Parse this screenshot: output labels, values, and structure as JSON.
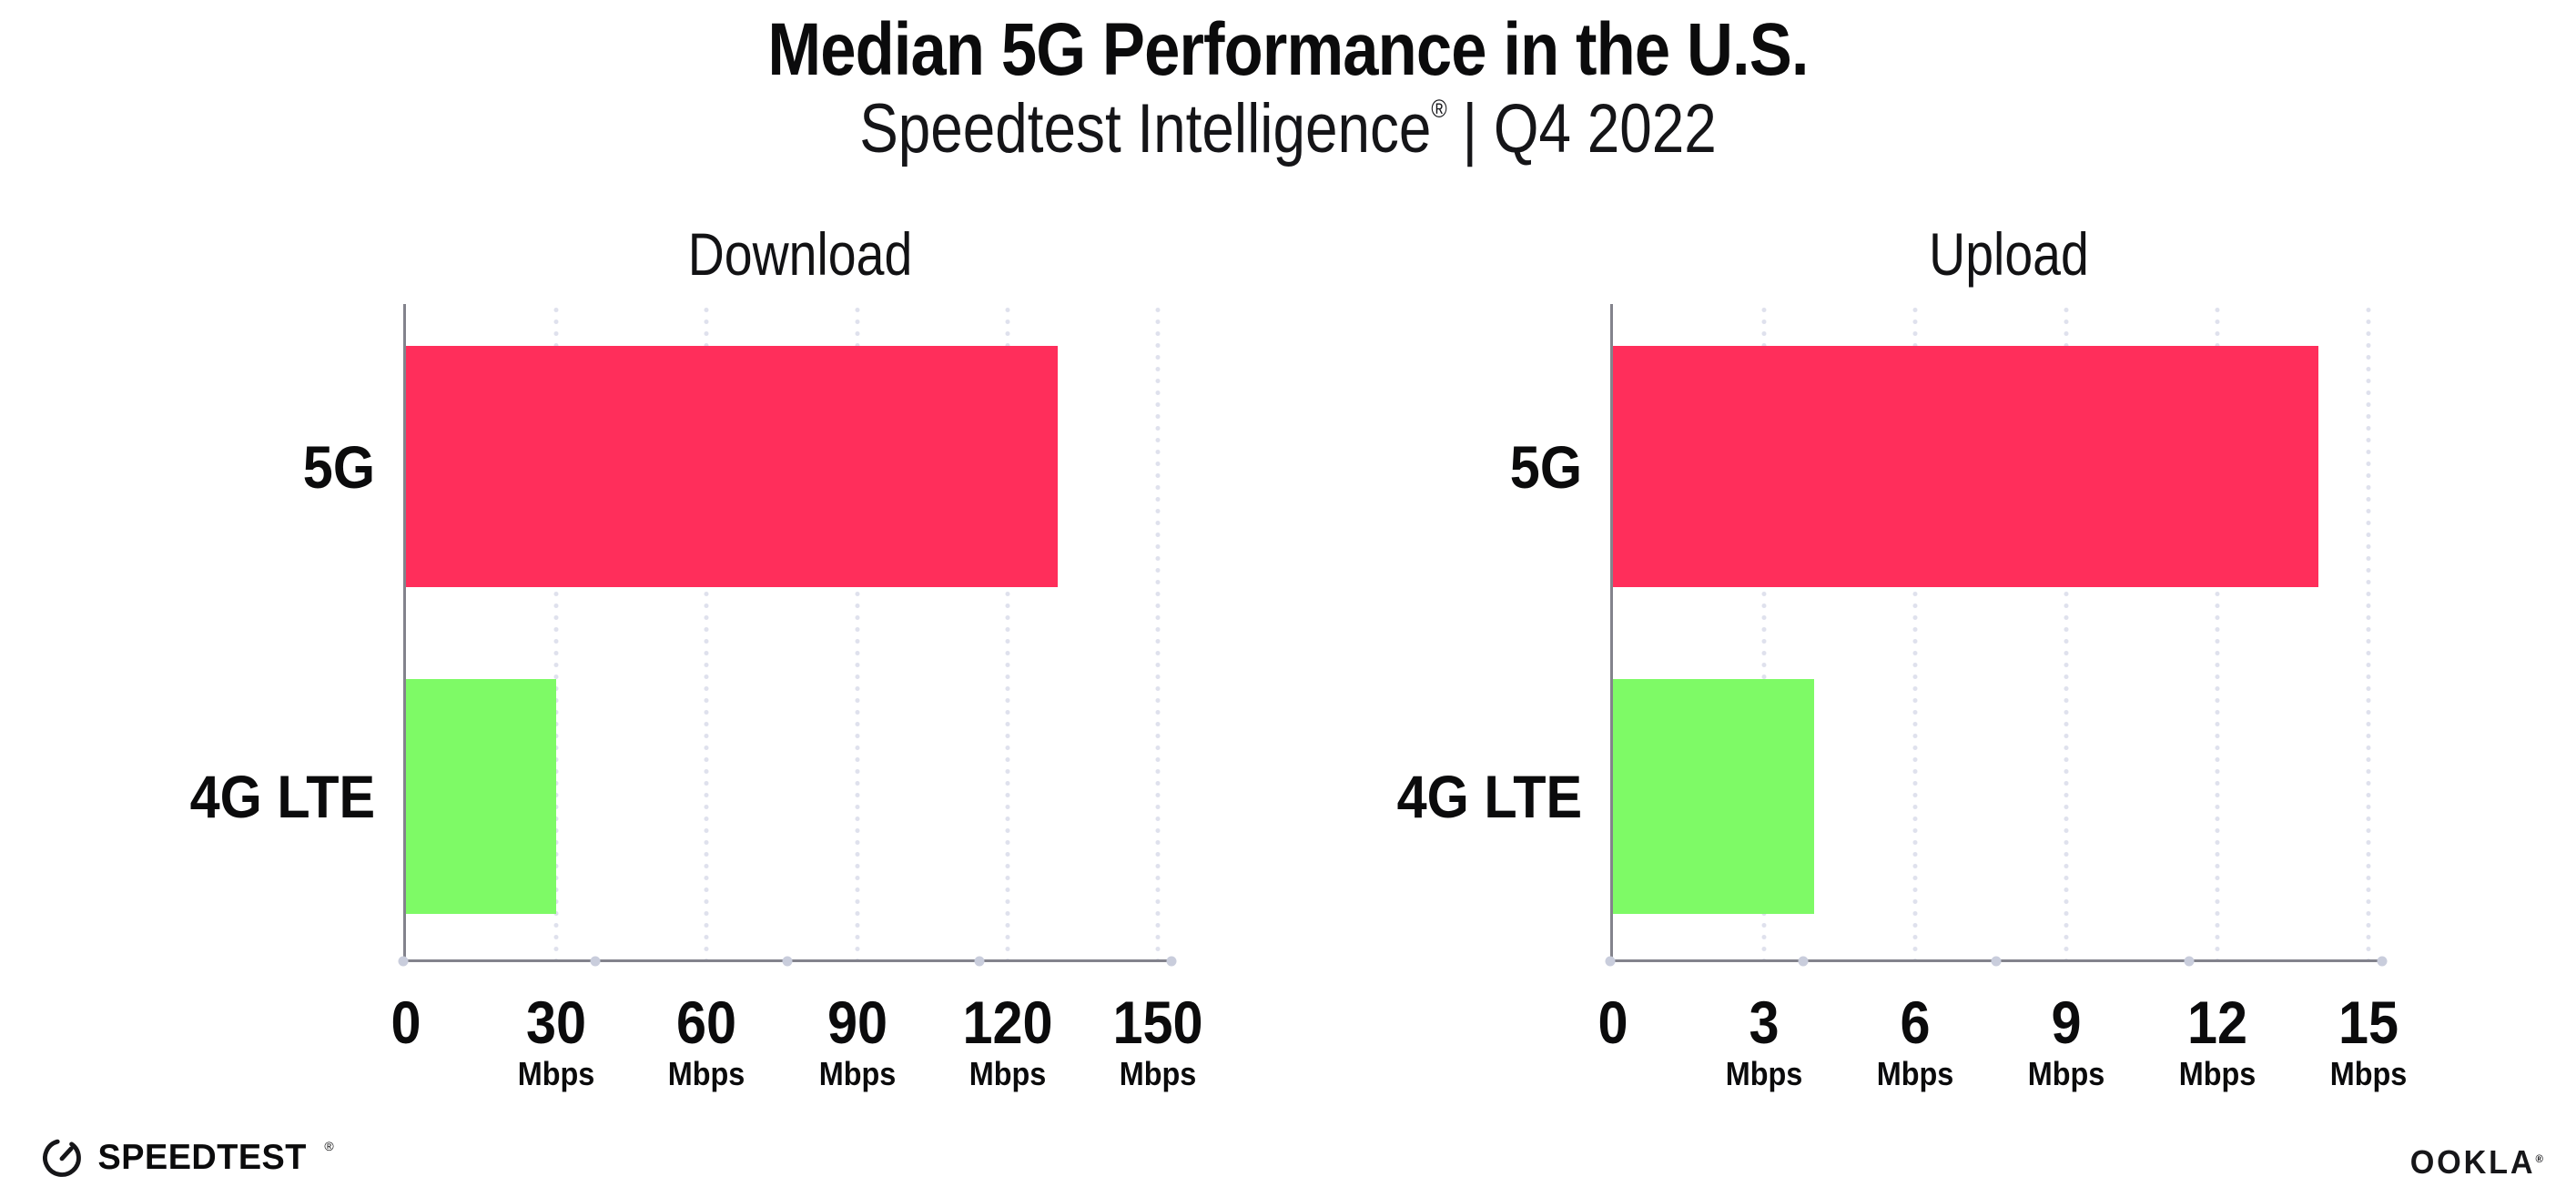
{
  "header": {
    "title": "Median 5G Performance in the U.S.",
    "subtitle_brand": "Speedtest Intelligence",
    "subtitle_reg": "®",
    "subtitle_period": "| Q4 2022"
  },
  "colors": {
    "bar_5g": "#FF2E5B",
    "bar_4g_lte": "#7EFA66",
    "axis": "#83838C",
    "grid_dot": "#DFE1ED",
    "axis_dot": "#C9CDDC",
    "text": "#0B0B0C"
  },
  "chart_data": [
    {
      "type": "bar",
      "orientation": "horizontal",
      "title": "Download",
      "categories": [
        "5G",
        "4G LTE"
      ],
      "values": [
        130,
        30
      ],
      "unit": "Mbps",
      "xlim": [
        0,
        150
      ],
      "xticks": [
        0,
        30,
        60,
        90,
        120,
        150
      ],
      "bar_colors": [
        "#FF2E5B",
        "#7EFA66"
      ],
      "grid": "dotted-vertical",
      "legend": "none"
    },
    {
      "type": "bar",
      "orientation": "horizontal",
      "title": "Upload",
      "categories": [
        "5G",
        "4G LTE"
      ],
      "values": [
        14,
        4
      ],
      "unit": "Mbps",
      "xlim": [
        0,
        15
      ],
      "xticks": [
        0,
        3,
        6,
        9,
        12,
        15
      ],
      "bar_colors": [
        "#FF2E5B",
        "#7EFA66"
      ],
      "grid": "dotted-vertical",
      "legend": "none"
    }
  ],
  "footer": {
    "speedtest_label": "SPEEDTEST",
    "speedtest_reg": "®",
    "ookla_label": "OOKLA",
    "ookla_reg": "®"
  }
}
